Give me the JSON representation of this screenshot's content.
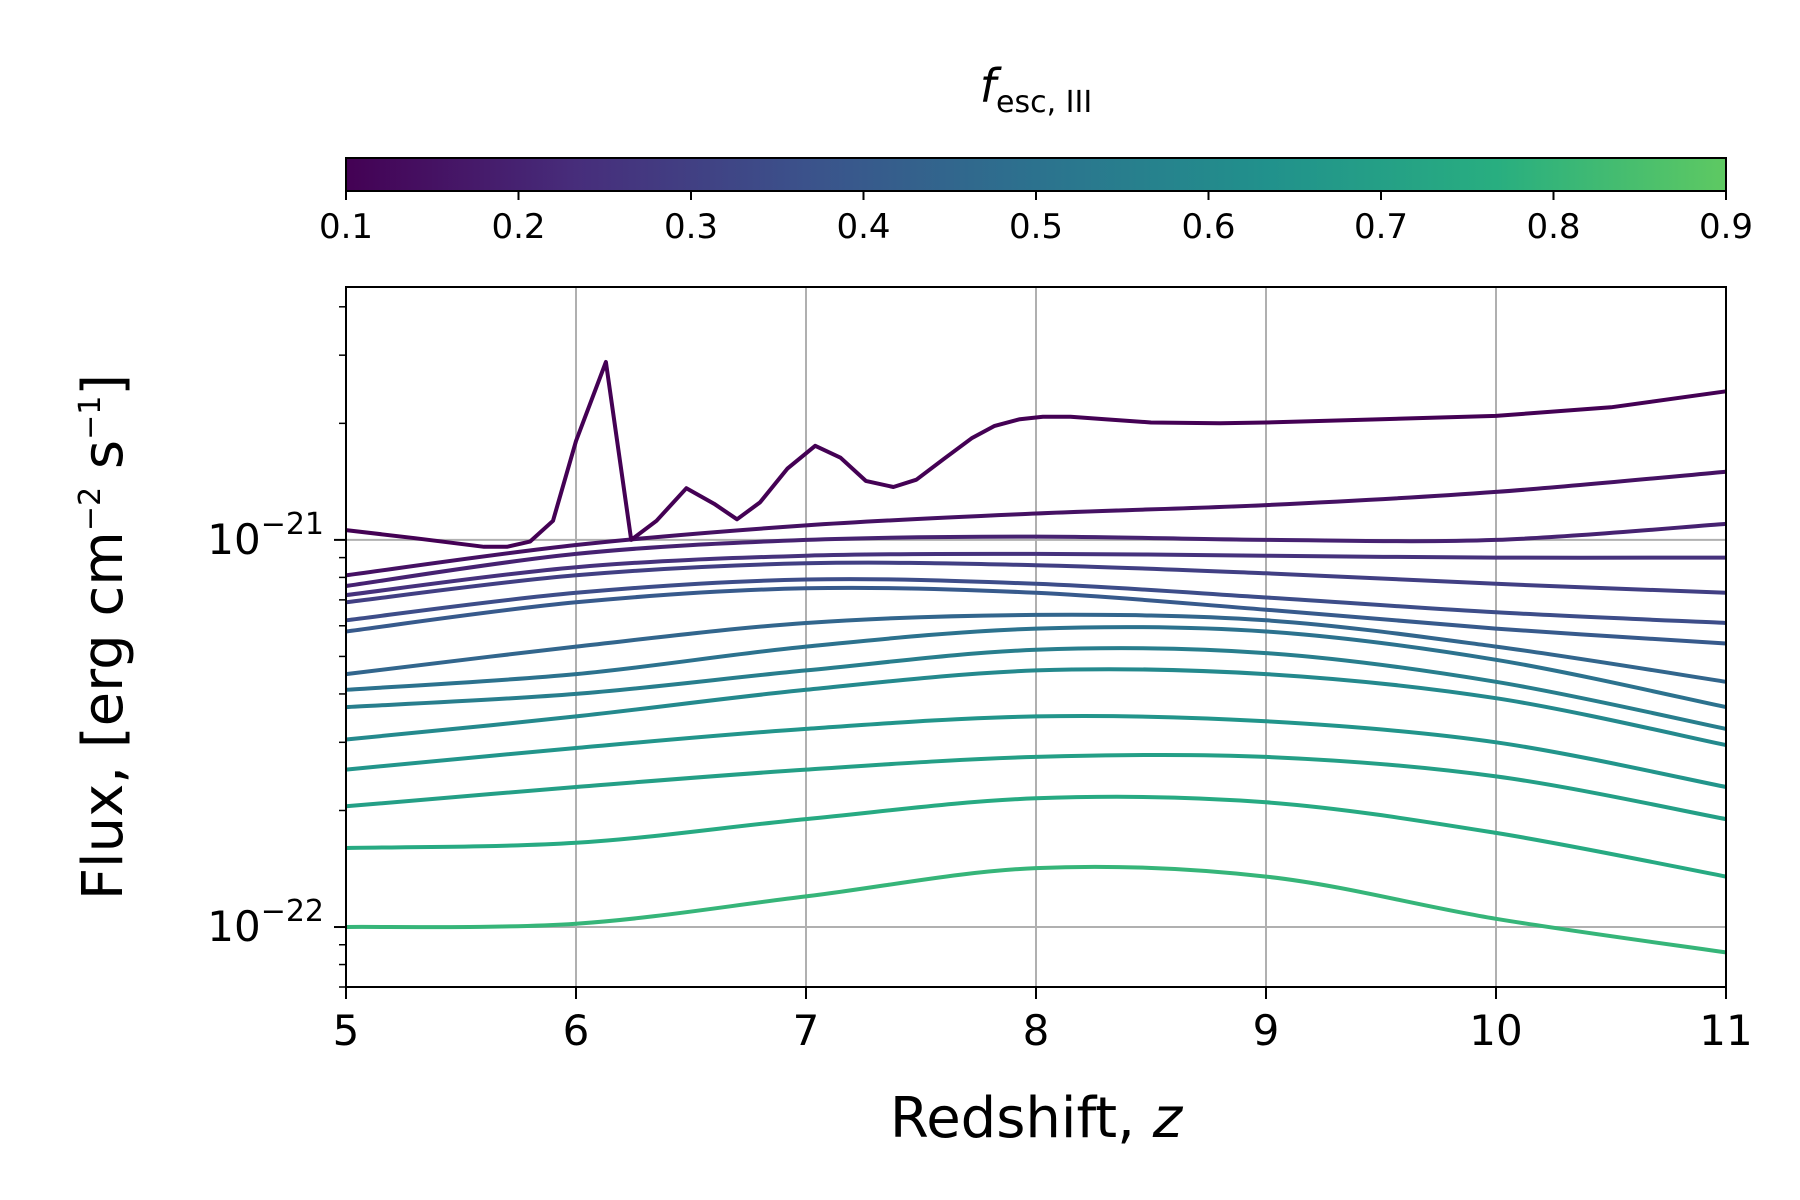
{
  "chart_data": {
    "type": "line",
    "xlabel": {
      "text": "Redshift, ",
      "var": "z"
    },
    "ylabel": {
      "prefix": "Flux, [erg cm",
      "exp1": "−2",
      "mid": " s",
      "exp2": "−1",
      "suffix": "]"
    },
    "xlim": [
      5,
      11
    ],
    "ylim": [
      7e-23,
      4.5e-21
    ],
    "yscale": "log",
    "grid": true,
    "x_ticks": [
      "5",
      "6",
      "7",
      "8",
      "9",
      "10",
      "11"
    ],
    "y_ticks": [
      {
        "value": 1e-21,
        "base": "10",
        "exp": "−21"
      },
      {
        "value": 1e-22,
        "base": "10",
        "exp": "−22"
      }
    ],
    "colorbar": {
      "label_italic": "f",
      "label_sub": "esc, III",
      "range": [
        0.1,
        0.9
      ],
      "ticks": [
        "0.1",
        "0.2",
        "0.3",
        "0.4",
        "0.5",
        "0.6",
        "0.7",
        "0.8",
        "0.9"
      ],
      "colormap": [
        "#440154",
        "#472d7b",
        "#3b528b",
        "#2c728e",
        "#21918c",
        "#28ae80",
        "#5ec962"
      ],
      "placement": "top"
    },
    "series": [
      {
        "name": "fesc=0.10",
        "fesc": 0.1,
        "x": [
          5.0,
          5.3,
          5.6,
          5.7,
          5.8,
          5.9,
          6.0,
          6.13,
          6.24,
          6.35,
          6.48,
          6.6,
          6.7,
          6.8,
          6.92,
          7.04,
          7.15,
          7.26,
          7.38,
          7.48,
          7.6,
          7.72,
          7.82,
          7.93,
          8.03,
          8.15,
          8.3,
          8.5,
          8.8,
          9.0,
          9.5,
          10.0,
          10.5,
          11.0
        ],
        "y": [
          1.06e-21,
          1.01e-21,
          9.6e-22,
          9.6e-22,
          9.9e-22,
          1.12e-21,
          1.8e-21,
          2.88e-21,
          1e-21,
          1.12e-21,
          1.36e-21,
          1.24e-21,
          1.13e-21,
          1.25e-21,
          1.53e-21,
          1.75e-21,
          1.63e-21,
          1.42e-21,
          1.37e-21,
          1.43e-21,
          1.62e-21,
          1.83e-21,
          1.97e-21,
          2.05e-21,
          2.08e-21,
          2.08e-21,
          2.05e-21,
          2.01e-21,
          2e-21,
          2.01e-21,
          2.05e-21,
          2.09e-21,
          2.2e-21,
          2.42e-21
        ]
      },
      {
        "name": "fesc=0.15",
        "fesc": 0.15,
        "x": [
          5,
          6,
          7,
          8,
          9,
          10,
          11
        ],
        "y": [
          8.1e-22,
          9.7e-22,
          1.09e-21,
          1.17e-21,
          1.23e-21,
          1.33e-21,
          1.5e-21
        ]
      },
      {
        "name": "fesc=0.20",
        "fesc": 0.2,
        "x": [
          5,
          6,
          7,
          8,
          9,
          10,
          11
        ],
        "y": [
          7.6e-22,
          9.2e-22,
          1e-21,
          1.02e-21,
          1e-21,
          1e-21,
          1.1e-21
        ]
      },
      {
        "name": "fesc=0.25",
        "fesc": 0.25,
        "x": [
          5,
          6,
          7,
          8,
          9,
          10,
          11
        ],
        "y": [
          7.2e-22,
          8.5e-22,
          9.1e-22,
          9.2e-22,
          9.1e-22,
          9e-22,
          9e-22
        ]
      },
      {
        "name": "fesc=0.30",
        "fesc": 0.3,
        "x": [
          5,
          6,
          7,
          8,
          9,
          10,
          11
        ],
        "y": [
          6.9e-22,
          8.1e-22,
          8.7e-22,
          8.6e-22,
          8.2e-22,
          7.7e-22,
          7.3e-22
        ]
      },
      {
        "name": "fesc=0.35",
        "fesc": 0.35,
        "x": [
          5,
          6,
          7,
          8,
          9,
          10,
          11
        ],
        "y": [
          6.2e-22,
          7.3e-22,
          7.9e-22,
          7.7e-22,
          7.1e-22,
          6.5e-22,
          6.1e-22
        ]
      },
      {
        "name": "fesc=0.40",
        "fesc": 0.4,
        "x": [
          5,
          6,
          7,
          8,
          9,
          10,
          11
        ],
        "y": [
          5.8e-22,
          6.9e-22,
          7.5e-22,
          7.3e-22,
          6.6e-22,
          5.9e-22,
          5.4e-22
        ]
      },
      {
        "name": "fesc=0.45",
        "fesc": 0.45,
        "x": [
          5,
          6,
          7,
          8,
          9,
          10,
          11
        ],
        "y": [
          4.5e-22,
          5.3e-22,
          6.1e-22,
          6.4e-22,
          6.2e-22,
          5.3e-22,
          4.3e-22
        ]
      },
      {
        "name": "fesc=0.50",
        "fesc": 0.5,
        "x": [
          5,
          6,
          7,
          8,
          9,
          10,
          11
        ],
        "y": [
          4.1e-22,
          4.5e-22,
          5.3e-22,
          5.9e-22,
          5.8e-22,
          4.9e-22,
          3.7e-22
        ]
      },
      {
        "name": "fesc=0.55",
        "fesc": 0.55,
        "x": [
          5,
          6,
          7,
          8,
          9,
          10,
          11
        ],
        "y": [
          3.7e-22,
          4e-22,
          4.6e-22,
          5.2e-22,
          5.1e-22,
          4.3e-22,
          3.25e-22
        ]
      },
      {
        "name": "fesc=0.60",
        "fesc": 0.6,
        "x": [
          5,
          6,
          7,
          8,
          9,
          10,
          11
        ],
        "y": [
          3.05e-22,
          3.5e-22,
          4.1e-22,
          4.6e-22,
          4.5e-22,
          3.9e-22,
          2.95e-22
        ]
      },
      {
        "name": "fesc=0.65",
        "fesc": 0.65,
        "x": [
          5,
          6,
          7,
          8,
          9,
          10,
          11
        ],
        "y": [
          2.55e-22,
          2.9e-22,
          3.25e-22,
          3.5e-22,
          3.4e-22,
          3e-22,
          2.3e-22
        ]
      },
      {
        "name": "fesc=0.70",
        "fesc": 0.7,
        "x": [
          5,
          6,
          7,
          8,
          9,
          10,
          11
        ],
        "y": [
          2.05e-22,
          2.3e-22,
          2.55e-22,
          2.75e-22,
          2.75e-22,
          2.45e-22,
          1.9e-22
        ]
      },
      {
        "name": "fesc=0.75",
        "fesc": 0.75,
        "x": [
          5,
          6,
          7,
          8,
          9,
          10,
          11
        ],
        "y": [
          1.6e-22,
          1.65e-22,
          1.9e-22,
          2.15e-22,
          2.1e-22,
          1.75e-22,
          1.35e-22
        ]
      },
      {
        "name": "fesc=0.80",
        "fesc": 0.8,
        "x": [
          5,
          6,
          7,
          8,
          9,
          10,
          11
        ],
        "y": [
          1e-22,
          1.02e-22,
          1.2e-22,
          1.42e-22,
          1.35e-22,
          1.05e-22,
          8.6e-23
        ]
      }
    ]
  }
}
